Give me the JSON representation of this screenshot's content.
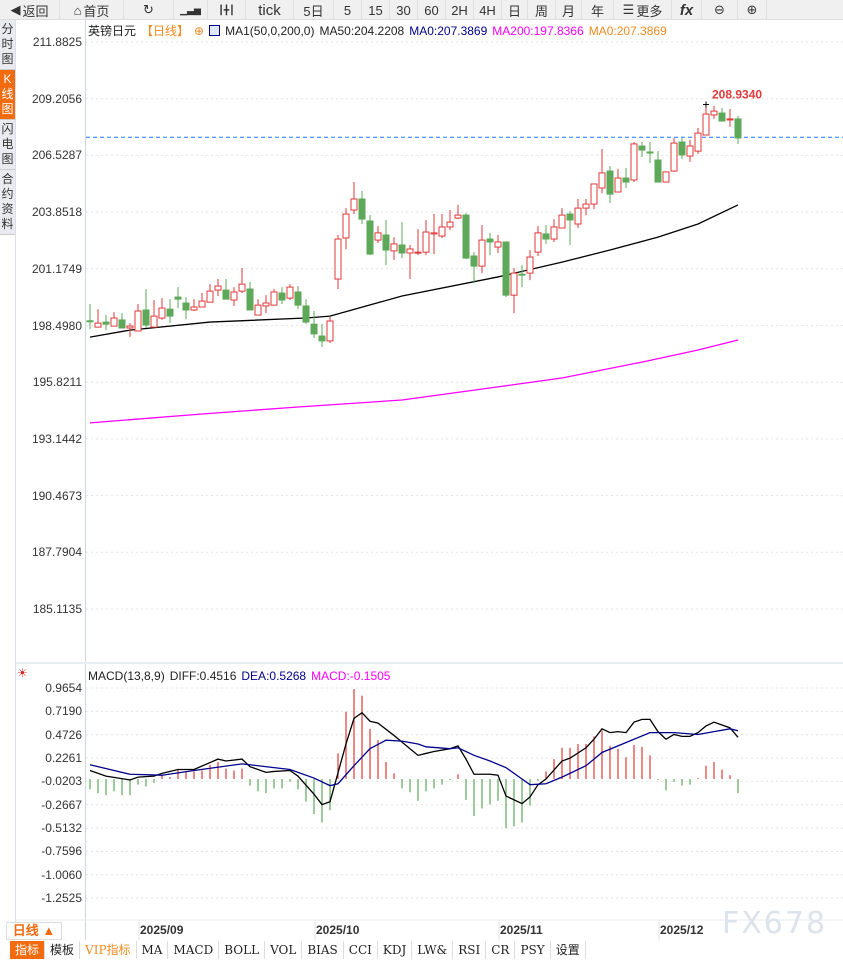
{
  "toolbar": {
    "items": [
      {
        "label": "返回",
        "icon": "back-arrow-icon"
      },
      {
        "label": "首页",
        "icon": "home-icon"
      },
      {
        "label": "",
        "icon": "refresh-icon"
      },
      {
        "label": "",
        "icon": "line-chart-icon"
      },
      {
        "label": "",
        "icon": "candlestick-icon"
      },
      {
        "label": "tick"
      },
      {
        "label": "5日"
      },
      {
        "label": "5"
      },
      {
        "label": "15"
      },
      {
        "label": "30"
      },
      {
        "label": "60"
      },
      {
        "label": "2H"
      },
      {
        "label": "4H"
      },
      {
        "label": "日"
      },
      {
        "label": "周"
      },
      {
        "label": "月"
      },
      {
        "label": "年"
      },
      {
        "label": "更多",
        "icon": "menu-icon"
      },
      {
        "label": "fx",
        "icon": "formula-icon"
      },
      {
        "label": "",
        "icon": "zoom-out-icon"
      },
      {
        "label": "",
        "icon": "zoom-in-icon"
      }
    ]
  },
  "sidebar": {
    "items": [
      {
        "label": "分时图"
      },
      {
        "label": "K线图",
        "active": true
      },
      {
        "label": "闪电图"
      },
      {
        "label": "合约资料"
      }
    ]
  },
  "legend": {
    "symbol": "英镑日元",
    "period": "【日线】",
    "indicator": "MA1(50,0,200,0)",
    "ma50": "MA50:204.2208",
    "ma0a": "MA0:207.3869",
    "ma200": "MA200:197.8366",
    "ma0b": "MA0:207.3869"
  },
  "price_axis": [
    "211.8825",
    "209.2056",
    "206.5287",
    "203.8518",
    "201.1749",
    "198.4980",
    "195.8211",
    "193.1442",
    "190.4673",
    "187.7904",
    "185.1135"
  ],
  "high_label": "208.9340",
  "current_price": 207.3869,
  "colors": {
    "up": "#e03a3a",
    "down": "#5ea85a",
    "ma50": "#000000",
    "ma200": "#ff00ff",
    "dea": "#00008b",
    "diff": "#000000",
    "current_line": "#1e78ff",
    "accent": "#f26b0f"
  },
  "candles": [
    [
      198.72,
      199.51,
      198.33,
      198.7
    ],
    [
      198.42,
      199.27,
      198.42,
      198.61
    ],
    [
      198.66,
      199.0,
      198.28,
      198.56
    ],
    [
      198.47,
      199.13,
      198.47,
      198.85
    ],
    [
      198.76,
      199.08,
      198.38,
      198.38
    ],
    [
      198.38,
      198.61,
      197.96,
      198.47
    ],
    [
      198.24,
      199.51,
      198.24,
      199.18
    ],
    [
      199.23,
      200.22,
      198.38,
      198.52
    ],
    [
      198.42,
      199.7,
      198.42,
      198.94
    ],
    [
      198.85,
      199.79,
      198.76,
      199.32
    ],
    [
      199.27,
      199.74,
      198.61,
      198.94
    ],
    [
      199.84,
      200.31,
      199.32,
      199.74
    ],
    [
      199.56,
      199.84,
      198.8,
      199.23
    ],
    [
      199.23,
      199.74,
      199.18,
      199.37
    ],
    [
      199.37,
      200.03,
      199.37,
      199.65
    ],
    [
      199.6,
      200.45,
      199.6,
      200.12
    ],
    [
      200.17,
      200.69,
      199.89,
      200.36
    ],
    [
      200.17,
      200.69,
      199.74,
      199.74
    ],
    [
      199.7,
      200.31,
      199.42,
      200.08
    ],
    [
      200.12,
      201.21,
      200.03,
      200.45
    ],
    [
      200.22,
      200.55,
      199.23,
      199.23
    ],
    [
      198.99,
      199.74,
      198.99,
      199.46
    ],
    [
      199.42,
      199.93,
      199.08,
      199.56
    ],
    [
      199.46,
      200.22,
      199.46,
      200.08
    ],
    [
      200.03,
      200.31,
      199.51,
      199.7
    ],
    [
      199.79,
      200.45,
      199.7,
      200.31
    ],
    [
      200.08,
      200.36,
      199.27,
      199.46
    ],
    [
      199.42,
      199.74,
      198.56,
      198.66
    ],
    [
      198.56,
      199.18,
      197.91,
      198.1
    ],
    [
      198.0,
      198.56,
      197.48,
      197.77
    ],
    [
      197.77,
      198.9,
      197.67,
      198.71
    ],
    [
      200.69,
      202.77,
      200.22,
      202.58
    ],
    [
      202.63,
      204.04,
      202.1,
      203.76
    ],
    [
      203.95,
      205.27,
      203.76,
      204.47
    ],
    [
      204.47,
      204.85,
      203.29,
      203.52
    ],
    [
      203.43,
      203.71,
      201.82,
      201.87
    ],
    [
      202.53,
      203.19,
      202.39,
      202.87
    ],
    [
      202.77,
      203.48,
      201.35,
      202.06
    ],
    [
      202.02,
      202.67,
      201.59,
      202.35
    ],
    [
      202.3,
      203.38,
      201.68,
      201.92
    ],
    [
      201.92,
      202.3,
      200.69,
      202.11
    ],
    [
      201.92,
      203.05,
      201.82,
      201.96
    ],
    [
      201.96,
      203.48,
      201.82,
      202.91
    ],
    [
      202.82,
      203.76,
      201.87,
      202.87
    ],
    [
      202.72,
      203.76,
      202.63,
      203.15
    ],
    [
      203.15,
      203.95,
      203.0,
      203.38
    ],
    [
      203.57,
      204.19,
      203.52,
      203.71
    ],
    [
      203.71,
      203.8,
      201.63,
      201.68
    ],
    [
      201.78,
      201.96,
      200.5,
      201.3
    ],
    [
      201.3,
      203.24,
      200.97,
      202.53
    ],
    [
      202.58,
      202.87,
      201.82,
      202.44
    ],
    [
      202.2,
      202.77,
      201.92,
      202.44
    ],
    [
      202.44,
      202.44,
      199.84,
      199.93
    ],
    [
      199.93,
      201.21,
      199.08,
      200.97
    ],
    [
      200.92,
      201.35,
      200.31,
      200.88
    ],
    [
      200.97,
      202.06,
      200.64,
      201.73
    ],
    [
      201.96,
      203.19,
      201.78,
      202.87
    ],
    [
      202.82,
      203.24,
      202.35,
      202.58
    ],
    [
      202.58,
      203.52,
      202.44,
      203.15
    ],
    [
      203.1,
      204.04,
      203.1,
      203.71
    ],
    [
      203.76,
      203.9,
      202.3,
      203.48
    ],
    [
      203.29,
      204.47,
      203.1,
      204.04
    ],
    [
      204.04,
      204.47,
      203.71,
      204.23
    ],
    [
      204.23,
      205.18,
      203.99,
      205.18
    ],
    [
      204.99,
      206.83,
      204.75,
      205.7
    ],
    [
      205.79,
      206.03,
      204.28,
      204.7
    ],
    [
      204.8,
      205.89,
      204.8,
      205.46
    ],
    [
      205.46,
      205.93,
      204.99,
      205.27
    ],
    [
      205.37,
      207.16,
      205.27,
      207.07
    ],
    [
      206.97,
      207.16,
      206.45,
      206.78
    ],
    [
      206.69,
      207.16,
      206.17,
      206.64
    ],
    [
      206.31,
      206.73,
      205.27,
      205.27
    ],
    [
      205.27,
      205.75,
      205.27,
      205.75
    ],
    [
      205.79,
      207.35,
      205.75,
      207.11
    ],
    [
      207.16,
      207.35,
      206.36,
      206.55
    ],
    [
      206.5,
      207.26,
      206.22,
      206.97
    ],
    [
      206.73,
      207.82,
      206.6,
      207.58
    ],
    [
      207.49,
      208.93,
      207.49,
      208.48
    ],
    [
      208.44,
      208.86,
      208.25,
      208.62
    ],
    [
      208.53,
      208.77,
      208.15,
      208.15
    ],
    [
      208.22,
      208.72,
      207.87,
      208.25
    ],
    [
      208.25,
      208.39,
      207.07,
      207.35
    ]
  ],
  "ma50": [
    [
      0,
      197.95
    ],
    [
      5,
      198.28
    ],
    [
      15,
      198.66
    ],
    [
      27,
      198.85
    ],
    [
      30,
      198.94
    ],
    [
      39,
      199.89
    ],
    [
      51,
      200.79
    ],
    [
      59,
      201.49
    ],
    [
      65,
      202.06
    ],
    [
      71,
      202.67
    ],
    [
      76,
      203.29
    ],
    [
      81,
      204.19
    ]
  ],
  "ma200": [
    [
      0,
      193.9
    ],
    [
      14,
      194.32
    ],
    [
      26,
      194.65
    ],
    [
      39,
      194.98
    ],
    [
      51,
      195.6
    ],
    [
      59,
      196.02
    ],
    [
      69,
      196.77
    ],
    [
      76,
      197.34
    ],
    [
      81,
      197.81
    ]
  ],
  "macd": {
    "title": "MACD(13,8,9)",
    "diff_label": "DIFF:0.4516",
    "dea_label": "DEA:0.5268",
    "macd_label": "MACD:-0.1505",
    "axis": [
      "0.9654",
      "0.7190",
      "0.4726",
      "0.2261",
      "-0.0203",
      "-0.2667",
      "-0.5132",
      "-0.7596",
      "-1.0060",
      "-1.2525"
    ],
    "hist": [
      -0.11,
      -0.15,
      -0.17,
      -0.13,
      -0.17,
      -0.17,
      -0.06,
      -0.08,
      -0.04,
      0.04,
      0.02,
      0.1,
      0.08,
      0.08,
      0.09,
      0.15,
      0.18,
      0.11,
      0.09,
      0.11,
      -0.07,
      -0.13,
      -0.15,
      -0.1,
      -0.1,
      -0.03,
      -0.11,
      -0.24,
      -0.37,
      -0.46,
      -0.33,
      0.27,
      0.71,
      0.95,
      0.88,
      0.53,
      0.41,
      0.18,
      0.06,
      -0.1,
      -0.14,
      -0.23,
      -0.13,
      -0.1,
      -0.06,
      -0.01,
      0.05,
      -0.22,
      -0.39,
      -0.31,
      -0.27,
      -0.23,
      -0.52,
      -0.5,
      -0.46,
      -0.28,
      -0.02,
      0.08,
      0.21,
      0.33,
      0.33,
      0.37,
      0.37,
      0.45,
      0.51,
      0.35,
      0.32,
      0.23,
      0.36,
      0.34,
      0.25,
      -0.01,
      -0.12,
      -0.03,
      -0.07,
      -0.06,
      0.01,
      0.14,
      0.18,
      0.1,
      0.04,
      -0.15
    ],
    "diff": [
      [
        0,
        0.09
      ],
      [
        2,
        0.03
      ],
      [
        5,
        -0.01
      ],
      [
        6,
        0.02
      ],
      [
        8,
        0.03
      ],
      [
        9,
        0.06
      ],
      [
        11,
        0.1
      ],
      [
        13,
        0.1
      ],
      [
        16,
        0.21
      ],
      [
        17,
        0.19
      ],
      [
        19,
        0.21
      ],
      [
        20,
        0.13
      ],
      [
        22,
        0.07
      ],
      [
        23,
        0.08
      ],
      [
        25,
        0.09
      ],
      [
        26,
        0.03
      ],
      [
        28,
        -0.16
      ],
      [
        29,
        -0.27
      ],
      [
        30,
        -0.24
      ],
      [
        32,
        0.37
      ],
      [
        33,
        0.64
      ],
      [
        34,
        0.7
      ],
      [
        35,
        0.61
      ],
      [
        36,
        0.59
      ],
      [
        38,
        0.46
      ],
      [
        39,
        0.39
      ],
      [
        41,
        0.25
      ],
      [
        42,
        0.27
      ],
      [
        43,
        0.29
      ],
      [
        45,
        0.32
      ],
      [
        46,
        0.35
      ],
      [
        47,
        0.21
      ],
      [
        48,
        0.05
      ],
      [
        50,
        0.05
      ],
      [
        51,
        0.04
      ],
      [
        52,
        -0.18
      ],
      [
        54,
        -0.26
      ],
      [
        55,
        -0.19
      ],
      [
        56,
        -0.06
      ],
      [
        57,
        0
      ],
      [
        59,
        0.19
      ],
      [
        60,
        0.22
      ],
      [
        62,
        0.33
      ],
      [
        63,
        0.42
      ],
      [
        64,
        0.53
      ],
      [
        65,
        0.49
      ],
      [
        66,
        0.5
      ],
      [
        67,
        0.49
      ],
      [
        68,
        0.6
      ],
      [
        69,
        0.63
      ],
      [
        70,
        0.63
      ],
      [
        71,
        0.5
      ],
      [
        72,
        0.42
      ],
      [
        73,
        0.47
      ],
      [
        74,
        0.45
      ],
      [
        75,
        0.45
      ],
      [
        76,
        0.49
      ],
      [
        77,
        0.56
      ],
      [
        78,
        0.6
      ],
      [
        79,
        0.57
      ],
      [
        80,
        0.54
      ],
      [
        81,
        0.44
      ]
    ],
    "dea": [
      [
        0,
        0.15
      ],
      [
        5,
        0.05
      ],
      [
        9,
        0.04
      ],
      [
        13,
        0.09
      ],
      [
        19,
        0.16
      ],
      [
        23,
        0.12
      ],
      [
        25,
        0.1
      ],
      [
        28,
        0.01
      ],
      [
        30,
        -0.07
      ],
      [
        31,
        -0.05
      ],
      [
        33,
        0.14
      ],
      [
        35,
        0.32
      ],
      [
        37,
        0.41
      ],
      [
        39,
        0.4
      ],
      [
        41,
        0.37
      ],
      [
        42,
        0.34
      ],
      [
        45,
        0.32
      ],
      [
        46,
        0.33
      ],
      [
        48,
        0.25
      ],
      [
        50,
        0.19
      ],
      [
        52,
        0.12
      ],
      [
        54,
        0
      ],
      [
        55,
        -0.06
      ],
      [
        57,
        -0.05
      ],
      [
        59,
        0.02
      ],
      [
        62,
        0.14
      ],
      [
        64,
        0.28
      ],
      [
        66,
        0.35
      ],
      [
        68,
        0.42
      ],
      [
        70,
        0.49
      ],
      [
        73,
        0.49
      ],
      [
        76,
        0.47
      ],
      [
        78,
        0.5
      ],
      [
        80,
        0.53
      ],
      [
        81,
        0.51
      ]
    ]
  },
  "dates": [
    {
      "label": "2025/09",
      "index": 7
    },
    {
      "label": "2025/10",
      "index": 29
    },
    {
      "label": "2025/11",
      "index": 52
    },
    {
      "label": "2025/12",
      "index": 72
    }
  ],
  "period_selector": "日线 ▲",
  "tabs": [
    {
      "label": "指标",
      "active": true
    },
    {
      "label": "模板"
    },
    {
      "label": "VIP指标",
      "vip": true
    },
    {
      "label": "MA"
    },
    {
      "label": "MACD"
    },
    {
      "label": "BOLL"
    },
    {
      "label": "VOL"
    },
    {
      "label": "BIAS"
    },
    {
      "label": "CCI"
    },
    {
      "label": "KDJ"
    },
    {
      "label": "LW&"
    },
    {
      "label": "RSI"
    },
    {
      "label": "CR"
    },
    {
      "label": "PSY"
    },
    {
      "label": "设置"
    }
  ],
  "watermark": "FX678"
}
